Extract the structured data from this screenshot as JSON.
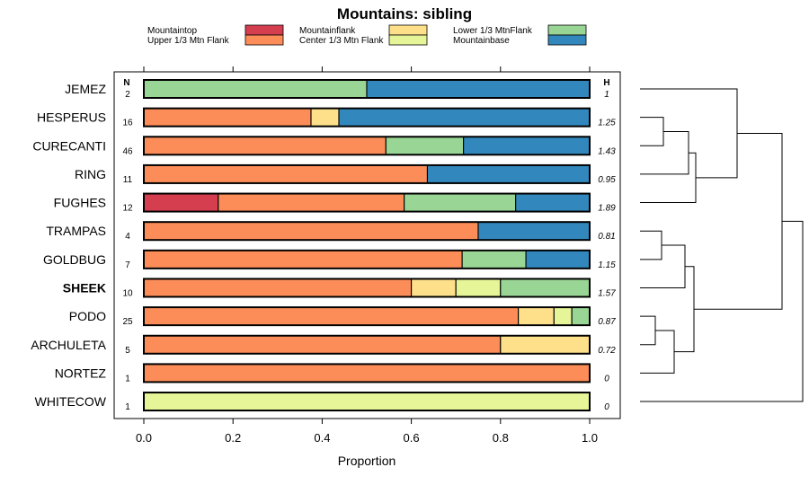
{
  "chart_data": {
    "type": "bar",
    "orientation": "horizontal",
    "stacked": true,
    "title": "Mountains: sibling",
    "xlabel": "Proportion",
    "xlim": [
      0,
      1
    ],
    "xticks": [
      "0.0",
      "0.2",
      "0.4",
      "0.6",
      "0.8",
      "1.0"
    ],
    "n_header": "N",
    "h_header": "H",
    "legend": [
      {
        "name": "Mountaintop",
        "color": "#d53e4f"
      },
      {
        "name": "Upper 1/3 Mtn Flank",
        "color": "#fc8d59"
      },
      {
        "name": "Mountainflank",
        "color": "#fee08b"
      },
      {
        "name": "Center 1/3 Mtn Flank",
        "color": "#e6f598"
      },
      {
        "name": "Lower 1/3 MtnFlank",
        "color": "#99d594"
      },
      {
        "name": "Mountainbase",
        "color": "#3288bd"
      }
    ],
    "rows": [
      {
        "label": "JEMEZ",
        "n": "2",
        "h": "1",
        "bold": false,
        "values": [
          0,
          0,
          0,
          0,
          0.5,
          0.5
        ]
      },
      {
        "label": "HESPERUS",
        "n": "16",
        "h": "1.25",
        "bold": false,
        "values": [
          0,
          0.375,
          0.0625,
          0,
          0,
          0.5625
        ]
      },
      {
        "label": "CURECANTI",
        "n": "46",
        "h": "1.43",
        "bold": false,
        "values": [
          0,
          0.543,
          0,
          0,
          0.174,
          0.283
        ]
      },
      {
        "label": "RING",
        "n": "11",
        "h": "0.95",
        "bold": false,
        "values": [
          0,
          0.636,
          0,
          0,
          0,
          0.364
        ]
      },
      {
        "label": "FUGHES",
        "n": "12",
        "h": "1.89",
        "bold": false,
        "values": [
          0.167,
          0.417,
          0,
          0,
          0.25,
          0.166
        ]
      },
      {
        "label": "TRAMPAS",
        "n": "4",
        "h": "0.81",
        "bold": false,
        "values": [
          0,
          0.75,
          0,
          0,
          0,
          0.25
        ]
      },
      {
        "label": "GOLDBUG",
        "n": "7",
        "h": "1.15",
        "bold": false,
        "values": [
          0,
          0.714,
          0,
          0,
          0.143,
          0.143
        ]
      },
      {
        "label": "SHEEK",
        "n": "10",
        "h": "1.57",
        "bold": true,
        "values": [
          0,
          0.6,
          0.1,
          0.1,
          0.2,
          0
        ]
      },
      {
        "label": "PODO",
        "n": "25",
        "h": "0.87",
        "bold": false,
        "values": [
          0,
          0.84,
          0.08,
          0.04,
          0.04,
          0
        ]
      },
      {
        "label": "ARCHULETA",
        "n": "5",
        "h": "0.72",
        "bold": false,
        "values": [
          0,
          0.8,
          0.2,
          0,
          0,
          0
        ]
      },
      {
        "label": "NORTEZ",
        "n": "1",
        "h": "0",
        "bold": false,
        "values": [
          0,
          1,
          0,
          0,
          0,
          0
        ]
      },
      {
        "label": "WHITECOW",
        "n": "1",
        "h": "0",
        "bold": false,
        "values": [
          0,
          0,
          0,
          1,
          0,
          0
        ]
      }
    ]
  }
}
